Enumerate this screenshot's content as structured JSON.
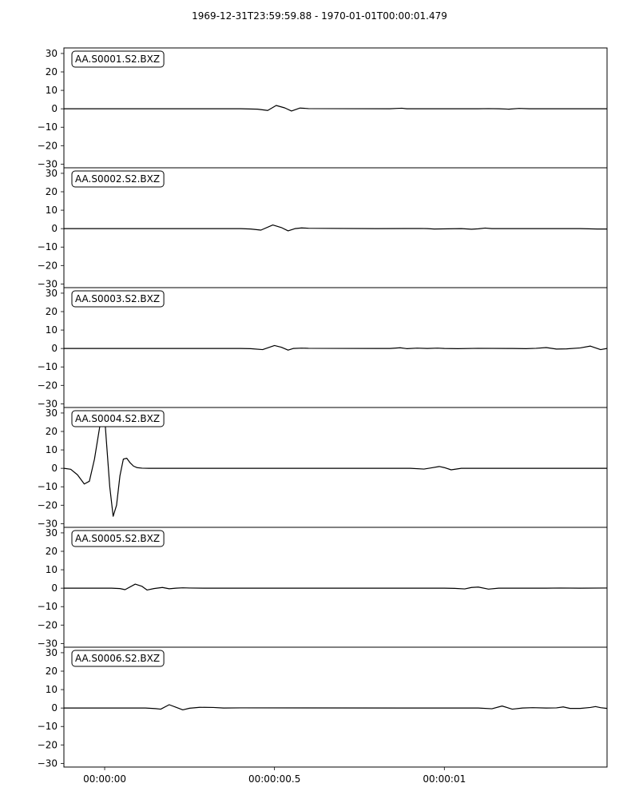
{
  "title": "1969-12-31T23:59:59.88  -  1970-01-01T00:00:01.479",
  "chart_data": [
    {
      "type": "line",
      "title": "AA.S0001.S2.BXZ",
      "ylim": [
        -32,
        33
      ],
      "yticks": [
        30,
        20,
        10,
        0,
        -10,
        -20,
        -30
      ],
      "series": [
        {
          "name": "AA.S0001.S2.BXZ",
          "x": [
            -0.12,
            0.4,
            0.45,
            0.48,
            0.505,
            0.53,
            0.55,
            0.575,
            0.6,
            0.84,
            0.86,
            0.875,
            0.89,
            1.1,
            1.13,
            1.16,
            1.19,
            1.22,
            1.25,
            1.479
          ],
          "y": [
            0,
            0,
            -0.2,
            -0.9,
            1.8,
            0.5,
            -1.2,
            0.4,
            0.1,
            0,
            0.2,
            0.3,
            0,
            0,
            0.1,
            0,
            -0.2,
            0.2,
            0,
            0
          ]
        }
      ]
    },
    {
      "type": "line",
      "title": "AA.S0002.S2.BXZ",
      "ylim": [
        -32,
        33
      ],
      "yticks": [
        30,
        20,
        10,
        0,
        -10,
        -20,
        -30
      ],
      "series": [
        {
          "name": "AA.S0002.S2.BXZ",
          "x": [
            -0.12,
            0.4,
            0.43,
            0.46,
            0.495,
            0.52,
            0.54,
            0.56,
            0.58,
            0.6,
            0.8,
            0.93,
            0.95,
            0.97,
            1.05,
            1.08,
            1.1,
            1.12,
            1.14,
            1.4,
            1.45,
            1.479
          ],
          "y": [
            0,
            0,
            -0.2,
            -0.8,
            2.0,
            0.6,
            -1.2,
            0,
            0.4,
            0.2,
            0,
            0.1,
            0,
            -0.2,
            0,
            -0.3,
            -0.1,
            0.3,
            0,
            0,
            -0.2,
            -0.2
          ]
        }
      ]
    },
    {
      "type": "line",
      "title": "AA.S0003.S2.BXZ",
      "ylim": [
        -32,
        33
      ],
      "yticks": [
        30,
        20,
        10,
        0,
        -10,
        -20,
        -30
      ],
      "series": [
        {
          "name": "AA.S0003.S2.BXZ",
          "x": [
            -0.12,
            0.4,
            0.43,
            0.465,
            0.5,
            0.52,
            0.54,
            0.555,
            0.58,
            0.6,
            0.8,
            0.84,
            0.87,
            0.89,
            0.92,
            0.95,
            0.98,
            1.0,
            1.04,
            1.1,
            1.2,
            1.24,
            1.27,
            1.3,
            1.33,
            1.36,
            1.4,
            1.43,
            1.46,
            1.479
          ],
          "y": [
            0,
            0,
            -0.1,
            -0.6,
            1.6,
            0.7,
            -0.9,
            0,
            0.2,
            0.1,
            0,
            0,
            0.4,
            -0.1,
            0.2,
            0,
            0.2,
            0,
            -0.1,
            0.1,
            0,
            -0.1,
            0.1,
            0.5,
            -0.3,
            -0.2,
            0.3,
            1.3,
            -0.6,
            0
          ]
        }
      ]
    },
    {
      "type": "line",
      "title": "AA.S0004.S2.BXZ",
      "ylim": [
        -32,
        33
      ],
      "yticks": [
        30,
        20,
        10,
        0,
        -10,
        -20,
        -30
      ],
      "series": [
        {
          "name": "AA.S0004.S2.BXZ",
          "x": [
            -0.12,
            -0.1,
            -0.08,
            -0.06,
            -0.045,
            -0.03,
            -0.015,
            -0.005,
            0.0,
            0.005,
            0.015,
            0.025,
            0.035,
            0.045,
            0.055,
            0.065,
            0.075,
            0.085,
            0.095,
            0.11,
            0.13,
            0.2,
            0.9,
            0.94,
            0.96,
            0.985,
            1.0,
            1.02,
            1.05,
            1.1,
            1.479
          ],
          "y": [
            0,
            -0.5,
            -3.5,
            -8.5,
            -7,
            5,
            22,
            30,
            28,
            15,
            -10,
            -26,
            -20,
            -4,
            5,
            5.5,
            3,
            1.2,
            0.4,
            0.1,
            0,
            0,
            0,
            -0.4,
            0.2,
            1.0,
            0.4,
            -0.8,
            0,
            0,
            0
          ]
        }
      ]
    },
    {
      "type": "line",
      "title": "AA.S0005.S2.BXZ",
      "ylim": [
        -32,
        33
      ],
      "yticks": [
        30,
        20,
        10,
        0,
        -10,
        -20,
        -30
      ],
      "series": [
        {
          "name": "AA.S0005.S2.BXZ",
          "x": [
            -0.12,
            0.02,
            0.045,
            0.06,
            0.09,
            0.11,
            0.125,
            0.145,
            0.17,
            0.19,
            0.21,
            0.23,
            0.25,
            0.3,
            1.0,
            1.03,
            1.06,
            1.08,
            1.1,
            1.13,
            1.16,
            1.3,
            1.34,
            1.4,
            1.479
          ],
          "y": [
            0,
            0,
            -0.2,
            -0.8,
            2.2,
            1.0,
            -1.0,
            -0.2,
            0.4,
            -0.3,
            0,
            0.2,
            0.1,
            0,
            0,
            -0.1,
            -0.4,
            0.4,
            0.6,
            -0.5,
            0,
            0,
            0.1,
            0,
            0.1
          ]
        }
      ]
    },
    {
      "type": "line",
      "title": "AA.S0006.S2.BXZ",
      "ylim": [
        -32,
        33
      ],
      "yticks": [
        30,
        20,
        10,
        0,
        -10,
        -20,
        -30
      ],
      "series": [
        {
          "name": "AA.S0006.S2.BXZ",
          "x": [
            -0.12,
            0.12,
            0.15,
            0.165,
            0.19,
            0.21,
            0.23,
            0.25,
            0.28,
            0.32,
            0.35,
            0.4,
            1.05,
            1.1,
            1.14,
            1.17,
            1.2,
            1.23,
            1.26,
            1.3,
            1.33,
            1.35,
            1.37,
            1.4,
            1.43,
            1.445,
            1.46,
            1.479
          ],
          "y": [
            0,
            0,
            -0.3,
            -0.6,
            1.8,
            0.4,
            -1.0,
            -0.1,
            0.4,
            0.3,
            0,
            0.1,
            0,
            0,
            -0.4,
            1.1,
            -0.6,
            0,
            0.2,
            0,
            0.1,
            0.6,
            -0.2,
            -0.2,
            0.3,
            0.8,
            0.2,
            -0.2
          ]
        }
      ]
    }
  ],
  "x_axis": {
    "ticks": [
      {
        "value": 0.0,
        "label": "00:00:00"
      },
      {
        "value": 0.5,
        "label": "00:00:00.5"
      },
      {
        "value": 1.0,
        "label": "00:00:01"
      }
    ],
    "range_seconds": [
      -0.12,
      1.479
    ]
  },
  "colors": {
    "trace": "#000000",
    "axis": "#000000",
    "background": "#ffffff"
  }
}
